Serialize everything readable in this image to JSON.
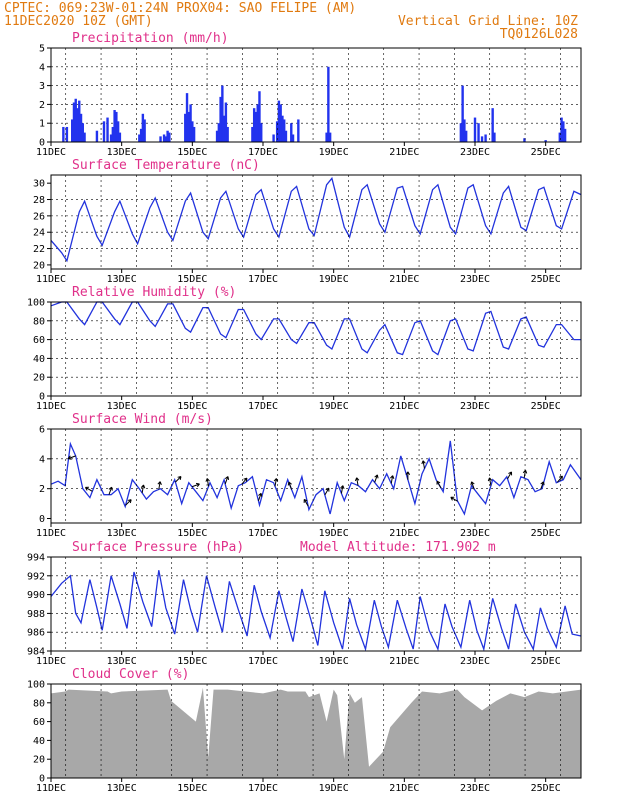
{
  "header": {
    "left1": "CPTEC:   069:23W-01:24N   PROX04: SAO FELIPE (AM)",
    "left2": "11DEC2020 10Z (GMT)",
    "right2": "Vertical Grid Line: 10Z",
    "right3": "TQ0126L028"
  },
  "colors": {
    "header": "#e07a10",
    "title": "#e0308a",
    "series": "#2233dd",
    "cloud": "#a8a8a8"
  },
  "x_ticks": [
    "11DEC",
    "13DEC",
    "15DEC",
    "17DEC",
    "19DEC",
    "21DEC",
    "23DEC",
    "25DEC"
  ],
  "panels": [
    {
      "key": "precip",
      "title": "Precipitation (mm/h)",
      "yticks": [
        "0",
        "1",
        "2",
        "3",
        "4",
        "5"
      ]
    },
    {
      "key": "temp",
      "title": "Surface Temperature (nC)",
      "yticks": [
        "20",
        "22",
        "24",
        "26",
        "28",
        "30"
      ]
    },
    {
      "key": "rh",
      "title": "Relative Humidity (%)",
      "yticks": [
        "0",
        "20",
        "40",
        "60",
        "80",
        "100"
      ]
    },
    {
      "key": "wind",
      "title": "Surface Wind (m/s)",
      "yticks": [
        "0",
        "2",
        "4",
        "6"
      ]
    },
    {
      "key": "pres",
      "title": "Surface Pressure (hPa)",
      "extra": "Model Altitude: 171.902 m",
      "yticks": [
        "984",
        "986",
        "988",
        "990",
        "992",
        "994"
      ]
    },
    {
      "key": "cloud",
      "title": "Cloud Cover (%)",
      "yticks": [
        "0",
        "20",
        "40",
        "60",
        "80",
        "100"
      ]
    }
  ],
  "chart_data": [
    {
      "type": "bar",
      "title": "Precipitation (mm/h)",
      "ylim": [
        0,
        5
      ],
      "xlim_days": [
        0,
        15
      ],
      "events": [
        [
          0.35,
          0.8
        ],
        [
          0.45,
          0.8
        ],
        [
          0.6,
          1.2
        ],
        [
          0.65,
          2.1
        ],
        [
          0.7,
          2.3
        ],
        [
          0.75,
          1.8
        ],
        [
          0.8,
          2.2
        ],
        [
          0.85,
          1.5
        ],
        [
          0.9,
          1.0
        ],
        [
          0.95,
          0.5
        ],
        [
          1.3,
          0.6
        ],
        [
          1.5,
          1.1
        ],
        [
          1.6,
          1.3
        ],
        [
          1.7,
          0.4
        ],
        [
          1.75,
          0.8
        ],
        [
          1.8,
          1.7
        ],
        [
          1.85,
          1.6
        ],
        [
          1.9,
          1.1
        ],
        [
          1.95,
          0.5
        ],
        [
          2.5,
          0.4
        ],
        [
          2.55,
          0.7
        ],
        [
          2.6,
          1.5
        ],
        [
          2.65,
          1.2
        ],
        [
          3.1,
          0.3
        ],
        [
          3.2,
          0.4
        ],
        [
          3.25,
          0.3
        ],
        [
          3.3,
          0.6
        ],
        [
          3.35,
          0.5
        ],
        [
          3.8,
          1.5
        ],
        [
          3.85,
          2.6
        ],
        [
          3.9,
          1.6
        ],
        [
          3.95,
          2.0
        ],
        [
          4.0,
          1.1
        ],
        [
          4.05,
          0.8
        ],
        [
          4.7,
          0.6
        ],
        [
          4.75,
          1.0
        ],
        [
          4.8,
          2.4
        ],
        [
          4.85,
          3.0
        ],
        [
          4.9,
          1.4
        ],
        [
          4.95,
          2.1
        ],
        [
          5.0,
          0.8
        ],
        [
          5.7,
          0.8
        ],
        [
          5.75,
          1.8
        ],
        [
          5.8,
          1.6
        ],
        [
          5.85,
          2.0
        ],
        [
          5.9,
          2.7
        ],
        [
          5.95,
          1.0
        ],
        [
          6.3,
          0.4
        ],
        [
          6.4,
          1.1
        ],
        [
          6.45,
          2.2
        ],
        [
          6.5,
          2.0
        ],
        [
          6.55,
          1.4
        ],
        [
          6.6,
          1.2
        ],
        [
          6.65,
          0.6
        ],
        [
          6.8,
          1.0
        ],
        [
          6.85,
          0.4
        ],
        [
          7.0,
          1.2
        ],
        [
          7.8,
          0.5
        ],
        [
          7.85,
          4.0
        ],
        [
          7.9,
          0.5
        ],
        [
          11.6,
          1.0
        ],
        [
          11.65,
          3.0
        ],
        [
          11.7,
          1.2
        ],
        [
          11.75,
          0.6
        ],
        [
          12.0,
          1.3
        ],
        [
          12.1,
          1.0
        ],
        [
          12.2,
          0.3
        ],
        [
          12.3,
          0.4
        ],
        [
          12.5,
          1.8
        ],
        [
          12.55,
          0.5
        ],
        [
          13.4,
          0.2
        ],
        [
          14.0,
          0.1
        ],
        [
          14.4,
          0.5
        ],
        [
          14.45,
          1.3
        ],
        [
          14.5,
          1.1
        ],
        [
          14.55,
          0.7
        ]
      ]
    },
    {
      "type": "line",
      "title": "Surface Temperature (nC)",
      "ylim": [
        19.5,
        31
      ],
      "x_days": [
        0,
        0.3,
        0.45,
        0.8,
        0.95,
        1.3,
        1.45,
        1.8,
        1.95,
        2.3,
        2.45,
        2.8,
        2.95,
        3.3,
        3.45,
        3.8,
        3.95,
        4.3,
        4.45,
        4.8,
        4.95,
        5.3,
        5.45,
        5.8,
        5.95,
        6.3,
        6.45,
        6.8,
        6.95,
        7.3,
        7.45,
        7.8,
        7.95,
        8.3,
        8.45,
        8.8,
        8.95,
        9.3,
        9.45,
        9.8,
        9.95,
        10.3,
        10.45,
        10.8,
        10.95,
        11.3,
        11.45,
        11.8,
        11.95,
        12.3,
        12.45,
        12.8,
        12.95,
        13.3,
        13.45,
        13.8,
        13.95,
        14.3,
        14.45,
        14.8,
        15.0
      ],
      "values": [
        23,
        21.5,
        20.5,
        26.5,
        27.8,
        23.5,
        22.4,
        26.5,
        27.8,
        23.8,
        22.6,
        27.0,
        28.2,
        24.0,
        23.0,
        27.8,
        28.8,
        24.0,
        23.2,
        28.2,
        29.0,
        24.4,
        23.4,
        28.6,
        29.2,
        24.4,
        23.4,
        29.0,
        29.6,
        24.4,
        23.6,
        29.8,
        30.6,
        24.6,
        23.4,
        29.2,
        29.8,
        25.0,
        24.0,
        29.4,
        29.6,
        24.8,
        23.8,
        29.2,
        29.8,
        24.6,
        23.8,
        29.4,
        29.8,
        24.8,
        23.8,
        28.8,
        29.6,
        24.6,
        24.2,
        29.2,
        29.5,
        24.8,
        24.4,
        29.0,
        28.6
      ]
    },
    {
      "type": "line",
      "title": "Relative Humidity (%)",
      "ylim": [
        0,
        100
      ],
      "x_days": [
        0,
        0.3,
        0.45,
        0.8,
        0.95,
        1.3,
        1.45,
        1.8,
        1.95,
        2.3,
        2.45,
        2.8,
        2.95,
        3.3,
        3.45,
        3.8,
        3.95,
        4.3,
        4.45,
        4.8,
        4.95,
        5.3,
        5.45,
        5.8,
        5.95,
        6.3,
        6.45,
        6.8,
        6.95,
        7.3,
        7.45,
        7.8,
        7.95,
        8.3,
        8.45,
        8.8,
        8.95,
        9.3,
        9.45,
        9.8,
        9.95,
        10.3,
        10.45,
        10.8,
        10.95,
        11.3,
        11.45,
        11.8,
        11.95,
        12.3,
        12.45,
        12.8,
        12.95,
        13.3,
        13.45,
        13.8,
        13.95,
        14.3,
        14.45,
        14.8,
        15.0
      ],
      "values": [
        96,
        100,
        100,
        82,
        76,
        100,
        100,
        82,
        76,
        100,
        100,
        80,
        74,
        98,
        98,
        72,
        68,
        94,
        94,
        66,
        62,
        92,
        92,
        66,
        60,
        82,
        82,
        60,
        56,
        78,
        78,
        54,
        50,
        82,
        82,
        50,
        46,
        70,
        76,
        46,
        44,
        78,
        80,
        48,
        44,
        80,
        82,
        50,
        48,
        88,
        90,
        52,
        50,
        82,
        84,
        54,
        52,
        76,
        76,
        60,
        60
      ]
    },
    {
      "type": "line",
      "title": "Surface Wind (m/s)",
      "ylim": [
        -0.3,
        6
      ],
      "x_days": [
        0,
        0.2,
        0.4,
        0.55,
        0.7,
        0.9,
        1.1,
        1.3,
        1.5,
        1.7,
        1.9,
        2.1,
        2.3,
        2.5,
        2.7,
        2.9,
        3.1,
        3.3,
        3.5,
        3.7,
        3.9,
        4.1,
        4.3,
        4.5,
        4.7,
        4.9,
        5.1,
        5.3,
        5.5,
        5.7,
        5.9,
        6.1,
        6.3,
        6.5,
        6.7,
        6.9,
        7.1,
        7.3,
        7.5,
        7.7,
        7.9,
        8.1,
        8.3,
        8.5,
        8.7,
        8.9,
        9.1,
        9.3,
        9.5,
        9.7,
        9.9,
        10.1,
        10.3,
        10.5,
        10.7,
        10.9,
        11.1,
        11.3,
        11.5,
        11.7,
        11.9,
        12.1,
        12.3,
        12.5,
        12.7,
        12.9,
        13.1,
        13.3,
        13.5,
        13.7,
        13.9,
        14.1,
        14.3,
        14.5,
        14.7,
        15.0
      ],
      "values": [
        2.3,
        2.5,
        2.2,
        5.0,
        4.2,
        2.0,
        1.4,
        2.6,
        1.6,
        1.6,
        2.0,
        0.8,
        2.6,
        2.0,
        1.3,
        1.8,
        2.0,
        1.6,
        2.6,
        1.0,
        2.4,
        1.8,
        1.2,
        2.4,
        1.4,
        2.6,
        0.7,
        2.2,
        2.4,
        2.8,
        0.9,
        2.6,
        2.4,
        1.2,
        2.6,
        1.4,
        2.8,
        0.6,
        1.6,
        2.0,
        0.3,
        2.4,
        1.2,
        2.4,
        2.2,
        1.8,
        2.6,
        2.0,
        3.0,
        2.0,
        4.2,
        2.6,
        1.0,
        3.0,
        4.0,
        2.6,
        1.8,
        5.2,
        1.2,
        0.3,
        2.2,
        1.6,
        1.0,
        2.6,
        2.2,
        2.8,
        1.4,
        2.8,
        2.6,
        1.8,
        2.0,
        3.8,
        2.4,
        2.6,
        3.6,
        2.6
      ]
    },
    {
      "type": "line",
      "title": "Surface Pressure (hPa)",
      "ylim": [
        984,
        994
      ],
      "x_days": [
        0,
        0.3,
        0.55,
        0.7,
        0.85,
        1.1,
        1.3,
        1.45,
        1.7,
        1.95,
        2.15,
        2.35,
        2.6,
        2.85,
        3.05,
        3.25,
        3.5,
        3.75,
        3.95,
        4.15,
        4.4,
        4.65,
        4.85,
        5.05,
        5.3,
        5.55,
        5.75,
        5.95,
        6.2,
        6.45,
        6.65,
        6.85,
        7.1,
        7.35,
        7.55,
        7.75,
        8.0,
        8.25,
        8.45,
        8.65,
        8.9,
        9.15,
        9.35,
        9.55,
        9.8,
        10.05,
        10.25,
        10.45,
        10.7,
        10.95,
        11.15,
        11.35,
        11.6,
        11.85,
        12.05,
        12.25,
        12.5,
        12.75,
        12.95,
        13.15,
        13.4,
        13.65,
        13.85,
        14.05,
        14.3,
        14.55,
        14.75,
        15.0
      ],
      "values": [
        989.8,
        991.2,
        992.0,
        988.0,
        987.0,
        991.6,
        988.6,
        986.2,
        992.0,
        989.0,
        986.4,
        992.4,
        989.2,
        986.6,
        992.6,
        988.6,
        985.8,
        991.6,
        988.4,
        986.0,
        992.0,
        988.6,
        986.0,
        991.4,
        988.4,
        985.6,
        991.0,
        988.2,
        985.4,
        990.4,
        987.6,
        985.0,
        990.6,
        987.4,
        984.6,
        990.4,
        987.0,
        984.2,
        989.6,
        986.8,
        984.2,
        989.4,
        986.6,
        984.4,
        989.4,
        986.4,
        984.2,
        989.8,
        986.2,
        984.2,
        989.0,
        986.6,
        984.4,
        989.4,
        986.2,
        984.2,
        989.6,
        986.4,
        984.2,
        989.0,
        986.0,
        984.2,
        988.6,
        986.4,
        984.4,
        988.8,
        985.8,
        985.6
      ]
    },
    {
      "type": "area",
      "title": "Cloud Cover (%)",
      "ylim": [
        0,
        100
      ],
      "x_days": [
        0,
        0.4,
        0.5,
        1.6,
        1.7,
        2.0,
        3.3,
        3.4,
        4.1,
        4.3,
        4.45,
        4.6,
        5.0,
        5.5,
        6.0,
        6.5,
        6.7,
        7.2,
        7.3,
        7.6,
        7.8,
        8.0,
        8.1,
        8.3,
        8.45,
        8.6,
        8.8,
        9.0,
        9.4,
        9.6,
        10.2,
        10.5,
        11.0,
        11.5,
        11.7,
        12.2,
        12.6,
        13.0,
        13.4,
        13.8,
        14.2,
        14.6,
        15.0
      ],
      "values": [
        90,
        92,
        94,
        92,
        90,
        92,
        94,
        82,
        60,
        96,
        22,
        94,
        94,
        92,
        90,
        94,
        92,
        92,
        86,
        90,
        60,
        94,
        88,
        20,
        90,
        80,
        86,
        12,
        28,
        54,
        80,
        92,
        90,
        94,
        86,
        72,
        82,
        90,
        86,
        92,
        90,
        92,
        94
      ]
    }
  ]
}
